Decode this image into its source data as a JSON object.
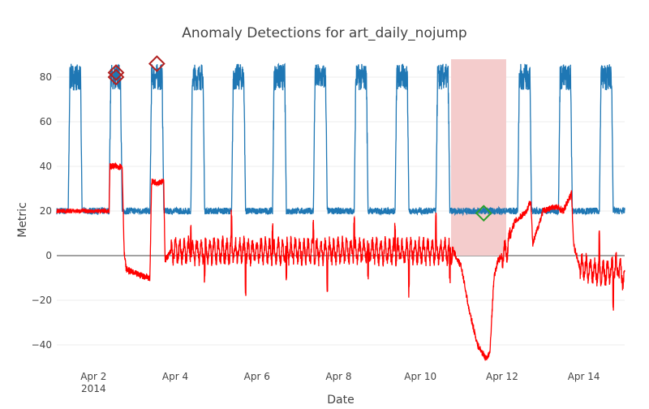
{
  "chart_data": {
    "type": "line",
    "title": "Anomaly Detections for art_daily_nojump",
    "xlabel": "Date",
    "ylabel": "Metric",
    "x_tick_labels": [
      "Apr 2",
      "Apr 4",
      "Apr 6",
      "Apr 8",
      "Apr 10",
      "Apr 12",
      "Apr 14"
    ],
    "x_tick_year": "2014",
    "x_tick_days": [
      2,
      4,
      6,
      8,
      10,
      12,
      14
    ],
    "xlim_days": [
      1.1,
      15.0
    ],
    "ylim": [
      -48,
      92
    ],
    "y_ticks": [
      -40,
      -20,
      0,
      20,
      40,
      60,
      80
    ],
    "y_tick_labels": [
      "−40",
      "−20",
      "0",
      "20",
      "40",
      "60",
      "80"
    ],
    "grid": true,
    "zero_line": true,
    "highlight_region": {
      "start_day": 10.75,
      "end_day": 12.1,
      "y0": 0,
      "y1": 88,
      "color": "#f4cccc"
    },
    "series": [
      {
        "type": "daily-cycle",
        "color": "#1f77b4",
        "description": "metric value cycling between ~20 (low) and ~80 (high) once per day",
        "low": 20,
        "high": 80,
        "cycles": [
          {
            "rise_day": 1.38,
            "fall_day": 1.72
          },
          {
            "rise_day": 2.38,
            "fall_day": 2.7
          },
          {
            "rise_day": 3.38,
            "fall_day": 3.72
          },
          {
            "rise_day": 4.38,
            "fall_day": 4.72
          },
          {
            "rise_day": 5.38,
            "fall_day": 5.72
          },
          {
            "rise_day": 6.38,
            "fall_day": 6.72
          },
          {
            "rise_day": 7.38,
            "fall_day": 7.72
          },
          {
            "rise_day": 8.38,
            "fall_day": 8.72
          },
          {
            "rise_day": 9.38,
            "fall_day": 9.72
          },
          {
            "rise_day": 10.38,
            "fall_day": 10.72
          },
          {
            "rise_day": 12.38,
            "fall_day": 12.72
          },
          {
            "rise_day": 13.38,
            "fall_day": 13.72
          },
          {
            "rise_day": 14.38,
            "fall_day": 14.72
          }
        ]
      },
      {
        "type": "residual",
        "color": "#ff0000",
        "description": "residual / error signal oscillating around 0",
        "keypoints": [
          [
            1.1,
            20
          ],
          [
            1.38,
            20
          ],
          [
            2.38,
            20
          ],
          [
            2.4,
            40
          ],
          [
            2.7,
            40
          ],
          [
            2.75,
            1
          ],
          [
            2.8,
            -6
          ],
          [
            3.0,
            -8
          ],
          [
            3.38,
            -10
          ],
          [
            3.42,
            33
          ],
          [
            3.72,
            33
          ],
          [
            3.75,
            -2
          ],
          [
            3.9,
            2
          ],
          [
            10.8,
            2
          ],
          [
            11.0,
            -5
          ],
          [
            11.2,
            -25
          ],
          [
            11.4,
            -40
          ],
          [
            11.6,
            -46
          ],
          [
            11.7,
            -44
          ],
          [
            11.8,
            -10
          ],
          [
            11.9,
            -2
          ],
          [
            12.1,
            2
          ],
          [
            12.3,
            15
          ],
          [
            12.6,
            20
          ],
          [
            12.7,
            25
          ],
          [
            12.75,
            5
          ],
          [
            13.0,
            20
          ],
          [
            13.3,
            22
          ],
          [
            13.5,
            20
          ],
          [
            13.7,
            28
          ],
          [
            13.75,
            5
          ],
          [
            13.9,
            -5
          ],
          [
            14.5,
            -8
          ],
          [
            14.8,
            -5
          ],
          [
            15.0,
            -10
          ]
        ]
      }
    ],
    "markers": [
      {
        "day": 2.55,
        "y": 82,
        "color": "#b22222",
        "shape": "diamond-open"
      },
      {
        "day": 2.55,
        "y": 80,
        "color": "#b22222",
        "shape": "diamond-open"
      },
      {
        "day": 3.55,
        "y": 86,
        "color": "#b22222",
        "shape": "diamond-open"
      },
      {
        "day": 11.55,
        "y": 19,
        "color": "#2ca02c",
        "shape": "diamond-open"
      }
    ]
  }
}
